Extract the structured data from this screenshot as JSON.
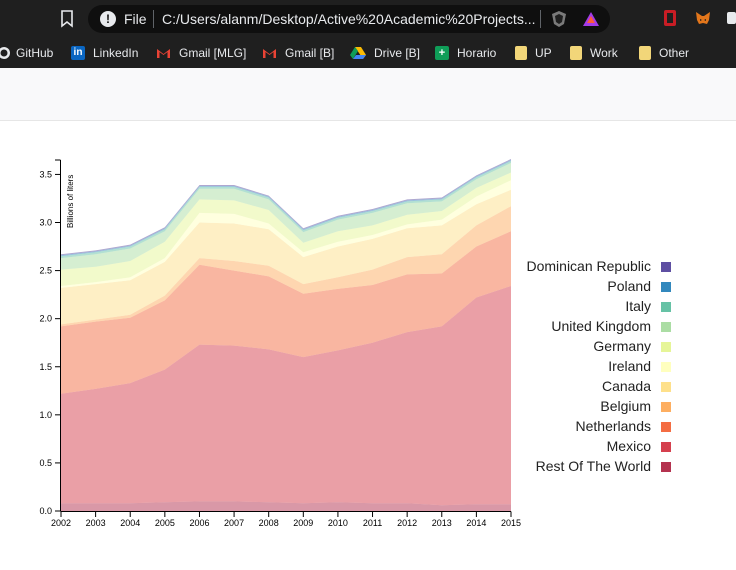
{
  "browser": {
    "address_bar": {
      "scheme_label": "File",
      "url": "C:/Users/alanm/Desktop/Active%20Academic%20Projects..."
    },
    "bookmarks": [
      {
        "label": "GitHub",
        "icon": "github-icon"
      },
      {
        "label": "LinkedIn",
        "icon": "linkedin-icon"
      },
      {
        "label": "Gmail [MLG]",
        "icon": "gmail-icon"
      },
      {
        "label": "Gmail [B]",
        "icon": "gmail-icon"
      },
      {
        "label": "Drive [B]",
        "icon": "drive-icon"
      },
      {
        "label": "Horario",
        "icon": "sheets-icon"
      },
      {
        "label": "UP",
        "icon": "folder-icon"
      },
      {
        "label": "Work",
        "icon": "folder-icon"
      },
      {
        "label": "Other",
        "icon": "folder-icon"
      }
    ]
  },
  "chart_data": {
    "type": "area",
    "stacked": true,
    "ylabel": "Billions of liters",
    "x": [
      2002,
      2003,
      2004,
      2005,
      2006,
      2007,
      2008,
      2009,
      2010,
      2011,
      2012,
      2013,
      2014,
      2015
    ],
    "ylim": [
      0,
      3.65
    ],
    "yticks": [
      "0.0",
      "0.5",
      "1.0",
      "1.5",
      "2.0",
      "2.5",
      "3.0",
      "3.5"
    ],
    "xticks": [
      "2002",
      "2003",
      "2004",
      "2005",
      "2006",
      "2007",
      "2008",
      "2009",
      "2010",
      "2011",
      "2012",
      "2013",
      "2014",
      "2015"
    ],
    "legend_position": "right",
    "series": [
      {
        "name": "Rest Of The World",
        "color": "#b4324f",
        "values": [
          0.08,
          0.08,
          0.08,
          0.09,
          0.1,
          0.1,
          0.09,
          0.08,
          0.09,
          0.08,
          0.08,
          0.06,
          0.07,
          0.07
        ]
      },
      {
        "name": "Mexico",
        "color": "#d5404e",
        "values": [
          1.14,
          1.19,
          1.25,
          1.38,
          1.63,
          1.62,
          1.59,
          1.52,
          1.58,
          1.67,
          1.78,
          1.86,
          2.15,
          2.27
        ]
      },
      {
        "name": "Netherlands",
        "color": "#f46d43",
        "values": [
          0.7,
          0.7,
          0.68,
          0.72,
          0.83,
          0.78,
          0.76,
          0.66,
          0.64,
          0.6,
          0.6,
          0.55,
          0.53,
          0.57
        ]
      },
      {
        "name": "Belgium",
        "color": "#fdae61",
        "values": [
          0.02,
          0.02,
          0.03,
          0.05,
          0.07,
          0.1,
          0.11,
          0.1,
          0.12,
          0.16,
          0.18,
          0.2,
          0.22,
          0.26
        ]
      },
      {
        "name": "Canada",
        "color": "#fee08b",
        "values": [
          0.38,
          0.37,
          0.36,
          0.35,
          0.37,
          0.39,
          0.38,
          0.28,
          0.32,
          0.32,
          0.3,
          0.3,
          0.22,
          0.17
        ]
      },
      {
        "name": "Ireland",
        "color": "#ffffbf",
        "values": [
          0.02,
          0.02,
          0.03,
          0.04,
          0.1,
          0.1,
          0.06,
          0.05,
          0.05,
          0.04,
          0.04,
          0.06,
          0.08,
          0.1
        ]
      },
      {
        "name": "Germany",
        "color": "#e6f598",
        "values": [
          0.17,
          0.16,
          0.17,
          0.17,
          0.14,
          0.14,
          0.14,
          0.1,
          0.11,
          0.1,
          0.1,
          0.09,
          0.09,
          0.08
        ]
      },
      {
        "name": "United Kingdom",
        "color": "#abdda4",
        "values": [
          0.12,
          0.13,
          0.13,
          0.11,
          0.11,
          0.12,
          0.11,
          0.11,
          0.12,
          0.13,
          0.12,
          0.1,
          0.09,
          0.1
        ]
      },
      {
        "name": "Italy",
        "color": "#66c2a5",
        "values": [
          0.02,
          0.02,
          0.02,
          0.02,
          0.02,
          0.02,
          0.02,
          0.02,
          0.02,
          0.02,
          0.02,
          0.02,
          0.02,
          0.02
        ]
      },
      {
        "name": "Poland",
        "color": "#3288bd",
        "values": [
          0.01,
          0.01,
          0.01,
          0.01,
          0.01,
          0.01,
          0.01,
          0.01,
          0.01,
          0.01,
          0.01,
          0.01,
          0.01,
          0.01
        ]
      },
      {
        "name": "Dominican Republic",
        "color": "#5e4fa2",
        "values": [
          0.01,
          0.01,
          0.01,
          0.01,
          0.01,
          0.01,
          0.01,
          0.01,
          0.01,
          0.01,
          0.01,
          0.01,
          0.01,
          0.01
        ]
      }
    ],
    "legend_order": [
      "Dominican Republic",
      "Poland",
      "Italy",
      "United Kingdom",
      "Germany",
      "Ireland",
      "Canada",
      "Belgium",
      "Netherlands",
      "Mexico",
      "Rest Of The World"
    ]
  }
}
